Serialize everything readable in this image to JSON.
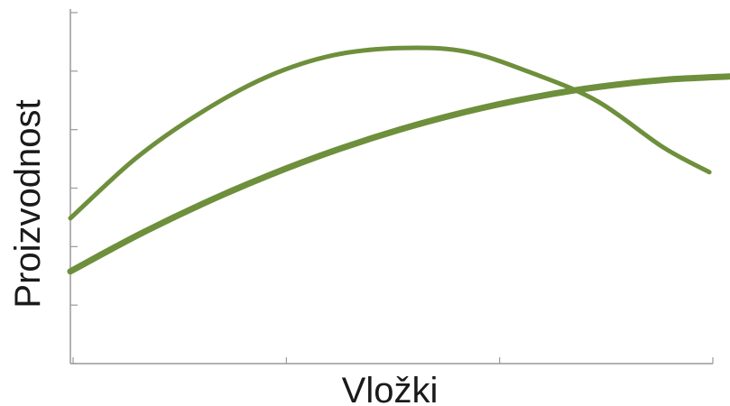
{
  "chart_data": {
    "type": "line",
    "title": "",
    "xlabel": "Vložki",
    "ylabel": "Proizvodnost",
    "x_ticks": 4,
    "y_ticks": 7,
    "xlim": [
      0,
      10
    ],
    "ylim": [
      0,
      10
    ],
    "grid": false,
    "legend": "none",
    "series": [
      {
        "color": "#6e8f3b",
        "x": [
          0,
          1,
          2,
          3,
          4,
          5,
          6,
          7,
          8,
          9,
          9.7
        ],
        "y": [
          4.1,
          5.8,
          7.1,
          8.1,
          8.7,
          8.9,
          8.8,
          8.2,
          7.4,
          6.1,
          5.4
        ]
      },
      {
        "color": "#6e8f3b",
        "x": [
          0,
          1,
          2,
          3,
          4,
          5,
          6,
          7,
          8,
          9,
          10
        ],
        "y": [
          2.6,
          3.6,
          4.5,
          5.3,
          6.0,
          6.6,
          7.1,
          7.5,
          7.8,
          8.0,
          8.1
        ]
      }
    ]
  }
}
